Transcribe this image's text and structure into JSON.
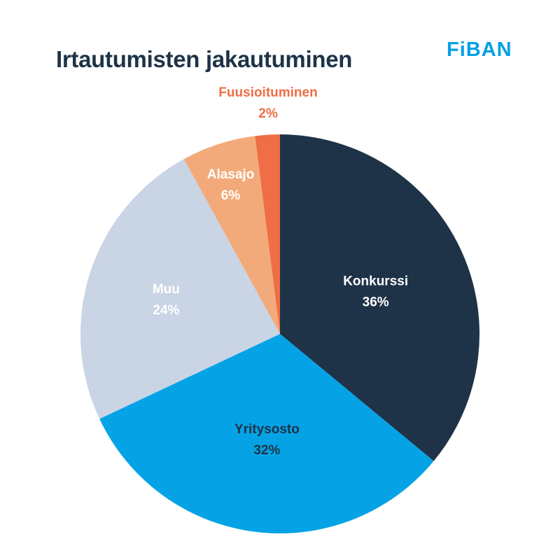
{
  "header": {
    "title": "Irtautumisten jakautuminen",
    "logo": "FiBAN"
  },
  "chart_data": {
    "type": "pie",
    "title": "Irtautumisten jakautuminen",
    "start": "top",
    "direction": "clockwise",
    "slices": [
      {
        "label": "Konkurssi",
        "value": 36,
        "display": "36%",
        "color": "#1e3347",
        "text_color": "#ffffff"
      },
      {
        "label": "Yritysosto",
        "value": 32,
        "display": "32%",
        "color": "#05a3e6",
        "text_color": "#1e3347"
      },
      {
        "label": "Muu",
        "value": 24,
        "display": "24%",
        "color": "#c9d4e4",
        "text_color": "#ffffff"
      },
      {
        "label": "Alasajo",
        "value": 6,
        "display": "6%",
        "color": "#f2aa7a",
        "text_color": "#ffffff"
      },
      {
        "label": "Fuusioituminen",
        "value": 2,
        "display": "2%",
        "color": "#ef6e45",
        "text_color": "#ef6e45"
      }
    ]
  }
}
